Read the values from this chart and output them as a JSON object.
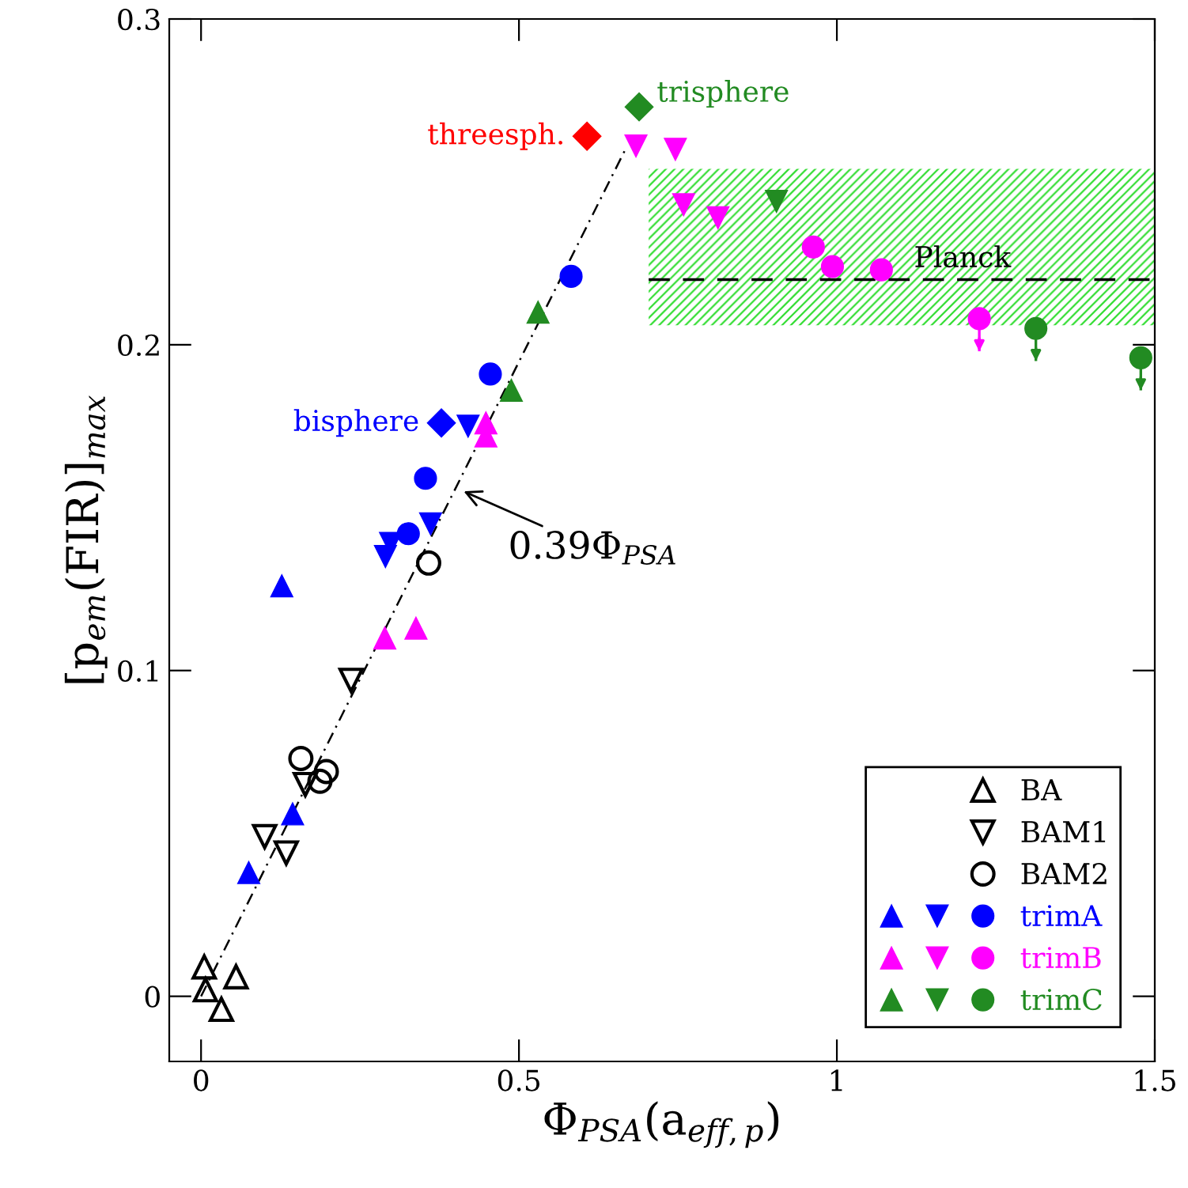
{
  "chart_data": {
    "type": "scatter",
    "xlabel": "Φ$_{PSA}$(a$_{eff,p}$)",
    "ylabel": "[p$_{em}$(FIR)]$_{max}$",
    "xlim": [
      -0.05,
      1.5
    ],
    "ylim": [
      -0.02,
      0.3
    ],
    "xticks": [
      0,
      0.5,
      1,
      1.5
    ],
    "yticks": [
      0,
      {
        "value": 0.1,
        "label": "0.1"
      },
      {
        "value": 0.2,
        "label": "0.2"
      },
      {
        "value": 0.3,
        "label": "0.3"
      }
    ],
    "grid": false,
    "legend": "bottom right",
    "annotations": [
      {
        "text": "0.39Φ$_{PSA}$",
        "x": 0.413,
        "y": 0.155
      }
    ],
    "series": [
      {
        "name": "BA",
        "color": "#000000",
        "marker": "triangle-open",
        "x": [
          0.005,
          0.007,
          0.055,
          0.032
        ],
        "values": [
          0.009,
          0.002,
          0.006,
          -0.004
        ]
      },
      {
        "name": "BAM1",
        "color": "#000000",
        "marker": "triangle_down-open",
        "x": [
          0.236,
          0.1,
          0.134,
          0.164
        ],
        "values": [
          0.097,
          0.049,
          0.044,
          0.065
        ]
      },
      {
        "name": "BAM2",
        "color": "#000000",
        "marker": "circle-open",
        "x": [
          0.157,
          0.197,
          0.187,
          0.358
        ],
        "values": [
          0.073,
          0.069,
          0.066,
          0.133
        ]
      },
      {
        "color": "#0000ff",
        "marker": "triangle",
        "x": [
          0.075,
          0.144,
          0.127
        ],
        "values": [
          0.038,
          0.056,
          0.126
        ]
      },
      {
        "color": "#0000ff",
        "marker": "triangle_down",
        "x": [
          0.29,
          0.298,
          0.361,
          0.42
        ],
        "values": [
          0.135,
          0.139,
          0.145,
          0.175
        ]
      },
      {
        "name": "trimA",
        "color": "#0000ff",
        "marker": "circle",
        "x": [
          0.326,
          0.353,
          0.455,
          0.582
        ],
        "values": [
          0.142,
          0.159,
          0.191,
          0.221
        ]
      },
      {
        "color": "#ff00ff",
        "marker": "triangle",
        "x": [
          0.289,
          0.338,
          0.448,
          0.448
        ],
        "values": [
          0.11,
          0.113,
          0.176,
          0.172
        ]
      },
      {
        "color": "#ff00ff",
        "marker": "triangle_down",
        "x": [
          0.684,
          0.746,
          0.759,
          0.813
        ],
        "values": [
          0.261,
          0.26,
          0.243,
          0.239
        ]
      },
      {
        "name": "trimB",
        "color": "#ff00ff",
        "marker": "circle",
        "x": [
          0.963,
          0.993,
          1.07,
          1.224
        ],
        "values": [
          0.23,
          0.224,
          0.223,
          0.208
        ],
        "errors": [
          null,
          null,
          null,
          [
            0.198,
            0.208
          ]
        ]
      },
      {
        "color": "#228b22",
        "marker": "triangle",
        "x": [
          0.53,
          0.488
        ],
        "values": [
          0.21,
          0.186
        ]
      },
      {
        "color": "#228b22",
        "marker": "triangle_down",
        "x": [
          0.905
        ],
        "values": [
          0.244
        ]
      },
      {
        "name": "trimC",
        "color": "#228b22",
        "marker": "circle",
        "x": [
          1.313,
          1.478
        ],
        "values": [
          0.205,
          0.196
        ],
        "errors": [
          [
            0.195,
            0.205
          ],
          [
            0.186,
            0.196
          ]
        ]
      },
      {
        "name": "bisphere",
        "color": "#0000ff",
        "marker": "diamond",
        "x": [
          0.378
        ],
        "values": [
          0.176
        ]
      },
      {
        "name": "threesph.",
        "color": "#ff0000",
        "marker": "diamond",
        "x": [
          0.607
        ],
        "values": [
          0.264
        ]
      },
      {
        "name": "trisphere",
        "color": "#228b22",
        "marker": "diamond",
        "x": [
          0.689
        ],
        "values": [
          0.273
        ]
      },
      {
        "type": "line",
        "line_style": "dashdot",
        "color": "#000000",
        "x": [
          0,
          0.67
        ],
        "values": [
          0,
          0.261
        ]
      },
      {
        "type": "line",
        "name": "Planck",
        "line_style": "dashed",
        "color": "#000000",
        "x": [
          0.704,
          1.5
        ],
        "values": [
          0.22,
          0.22
        ],
        "lower": [
          0.206,
          0.206
        ],
        "upper": [
          0.254,
          0.254
        ]
      }
    ]
  }
}
